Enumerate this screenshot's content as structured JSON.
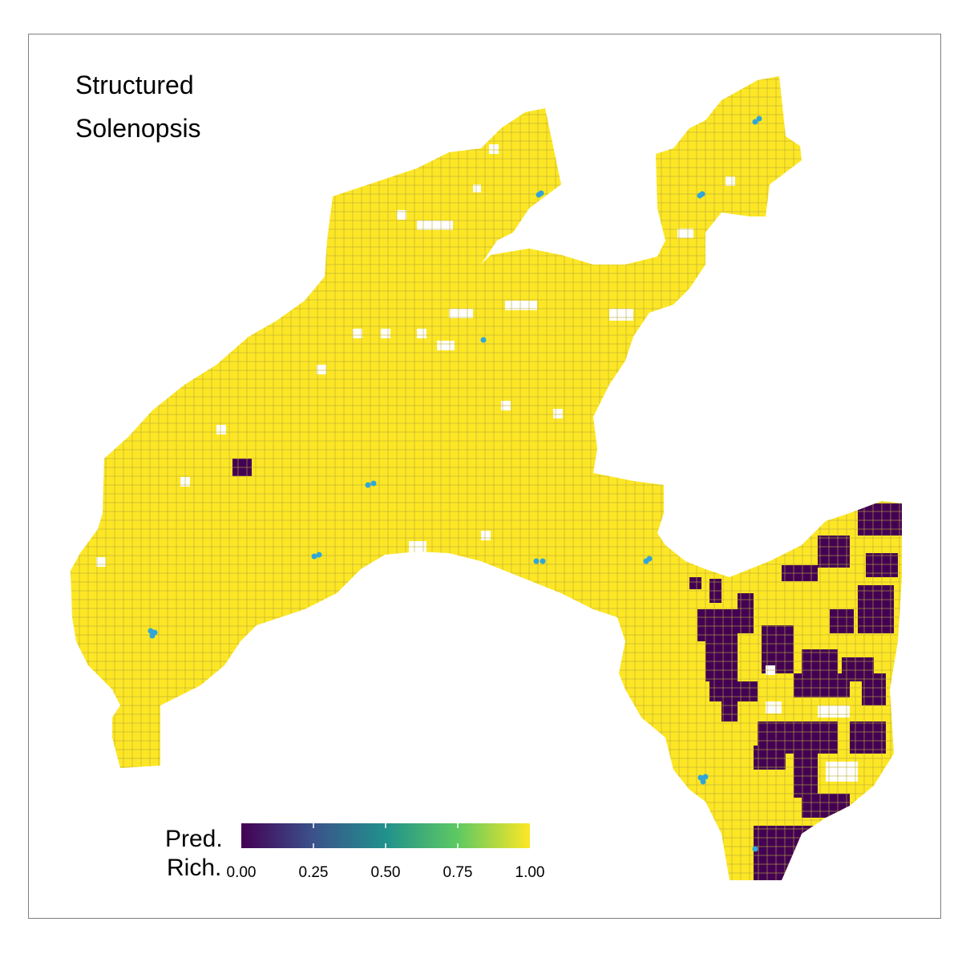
{
  "title": {
    "line1": "Structured",
    "line2": "Solenopsis"
  },
  "legend": {
    "title_line1": "Pred.",
    "title_line2": "Rich.",
    "ticks": [
      "0.00",
      "0.25",
      "0.50",
      "0.75",
      "1.00"
    ],
    "range": [
      0,
      1
    ],
    "palette": [
      "#440154",
      "#3b528b",
      "#21918c",
      "#5ec962",
      "#fde725"
    ]
  },
  "colors": {
    "high": "#fde725",
    "low": "#440154",
    "cell_border": "#b8a93a",
    "points": "#2fa6d9"
  }
}
